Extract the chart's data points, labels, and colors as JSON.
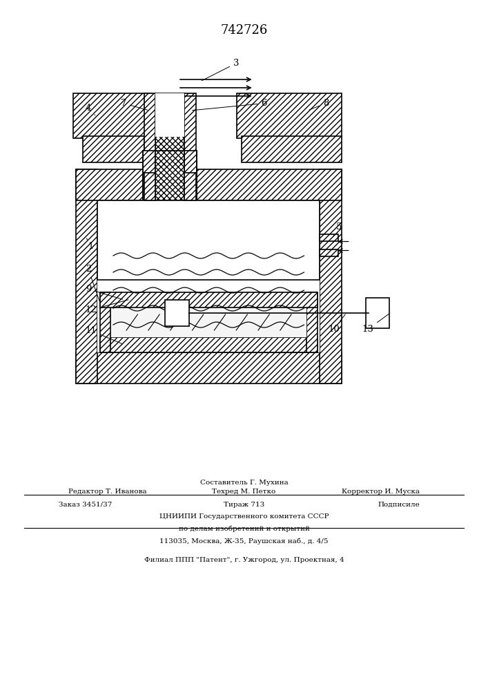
{
  "patent_number": "742726",
  "bg_color": "#ffffff",
  "line_color": "#000000",
  "footer_line1": "Составитель Г. Мухина",
  "footer_line2_left": "Редактор Т. Иванова",
  "footer_line2_mid": "Техред М. Петко",
  "footer_line2_right": "Корректор И. Муска",
  "footer_line3_left": "Заказ 3451/37",
  "footer_line3_mid": "Тираж 713",
  "footer_line3_right": "Подписиле",
  "footer_line4": "ЦНИИПИ Государственного комитета СССР",
  "footer_line5": "по делам изобретений и открытий",
  "footer_line6": "113035, Москва, Ж-35, Раушская наб., д. 4/5",
  "footer_line7": "Филиал ППП \"Патент\", г. Ужгород, ул. Проектная, 4"
}
